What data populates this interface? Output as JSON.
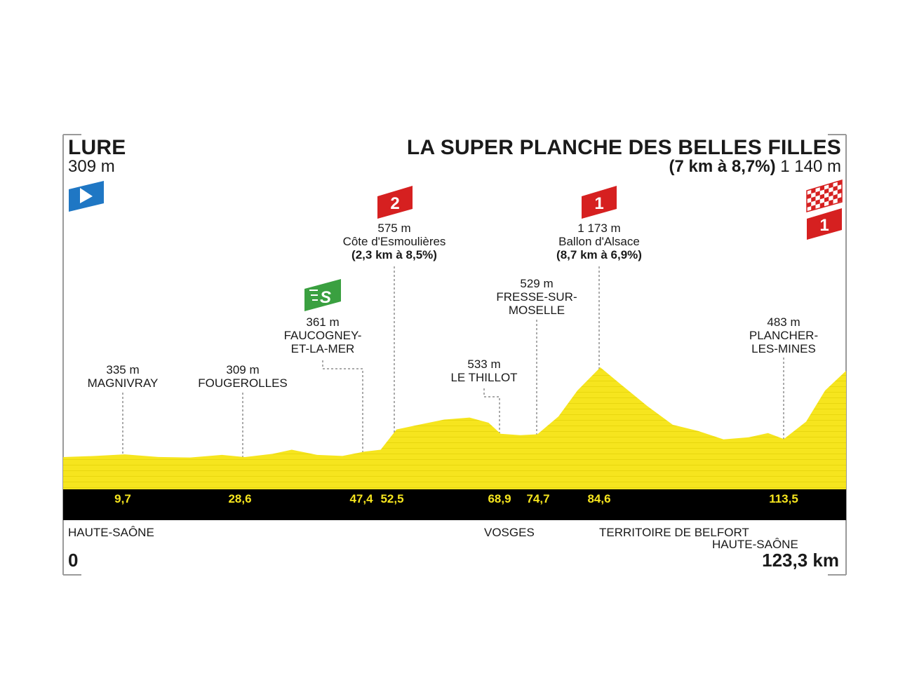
{
  "start": {
    "name": "LURE",
    "altitude": "309 m"
  },
  "finish": {
    "name": "LA SUPER PLANCHE DES BELLES FILLES",
    "climb": "(7 km à 8,7%)",
    "altitude": "1 140 m"
  },
  "colors": {
    "profile": "#f6e51e",
    "profile_stripe": "#e8d70f",
    "band": "#000000",
    "km_text": "#f6e51e",
    "climb_badge": "#d62020",
    "sprint_badge": "#3aa040",
    "start_badge": "#1f77c4"
  },
  "badges": {
    "cat2": "2",
    "cat1_ballon": "1",
    "cat1_finish": "1",
    "sprint": "S"
  },
  "waypoints": [
    {
      "altitude": "335 m",
      "name": "MAGNIVRAY",
      "km": "9,7"
    },
    {
      "altitude": "309 m",
      "name": "FOUGEROLLES",
      "km": "28,6"
    },
    {
      "altitude": "361 m",
      "name": "FAUCOGNEY-\nET-LA-MER",
      "km": "47,4"
    },
    {
      "altitude": "575 m",
      "name": "Côte d'Esmoulières",
      "climb": "(2,3 km à 8,5%)",
      "km": "52,5"
    },
    {
      "altitude": "533 m",
      "name": "LE THILLOT",
      "km": "68,9"
    },
    {
      "altitude": "529 m",
      "name": "FRESSE-SUR-\nMOSELLE",
      "km": "74,7"
    },
    {
      "altitude": "1 173 m",
      "name": "Ballon d'Alsace",
      "climb": "(8,7 km à 6,9%)",
      "km": "84,6"
    },
    {
      "altitude": "483 m",
      "name": "PLANCHER-\nLES-MINES",
      "km": "113,5"
    }
  ],
  "departments": {
    "d1": "HAUTE-SAÔNE",
    "d2": "VOSGES",
    "d3": "TERRITOIRE DE BELFORT",
    "d4": "HAUTE-SAÔNE"
  },
  "distance": {
    "start": "0",
    "end": "123,3 km"
  },
  "chart_data": {
    "type": "area",
    "xlabel": "",
    "ylabel": "",
    "xlim": [
      0,
      123.3
    ],
    "x": [
      0,
      5,
      9.7,
      15,
      20,
      25,
      28.6,
      33,
      36,
      40,
      44,
      47.4,
      50,
      52.5,
      56,
      60,
      64,
      67,
      68.9,
      72,
      74.7,
      78,
      81,
      84.6,
      88,
      92,
      96,
      100,
      104,
      108,
      111,
      113.5,
      117,
      120,
      123.3
    ],
    "y": [
      309,
      320,
      335,
      310,
      305,
      330,
      309,
      340,
      380,
      330,
      320,
      361,
      380,
      575,
      620,
      670,
      690,
      640,
      533,
      520,
      529,
      700,
      950,
      1173,
      1000,
      800,
      620,
      560,
      480,
      500,
      540,
      483,
      650,
      950,
      1140
    ]
  }
}
